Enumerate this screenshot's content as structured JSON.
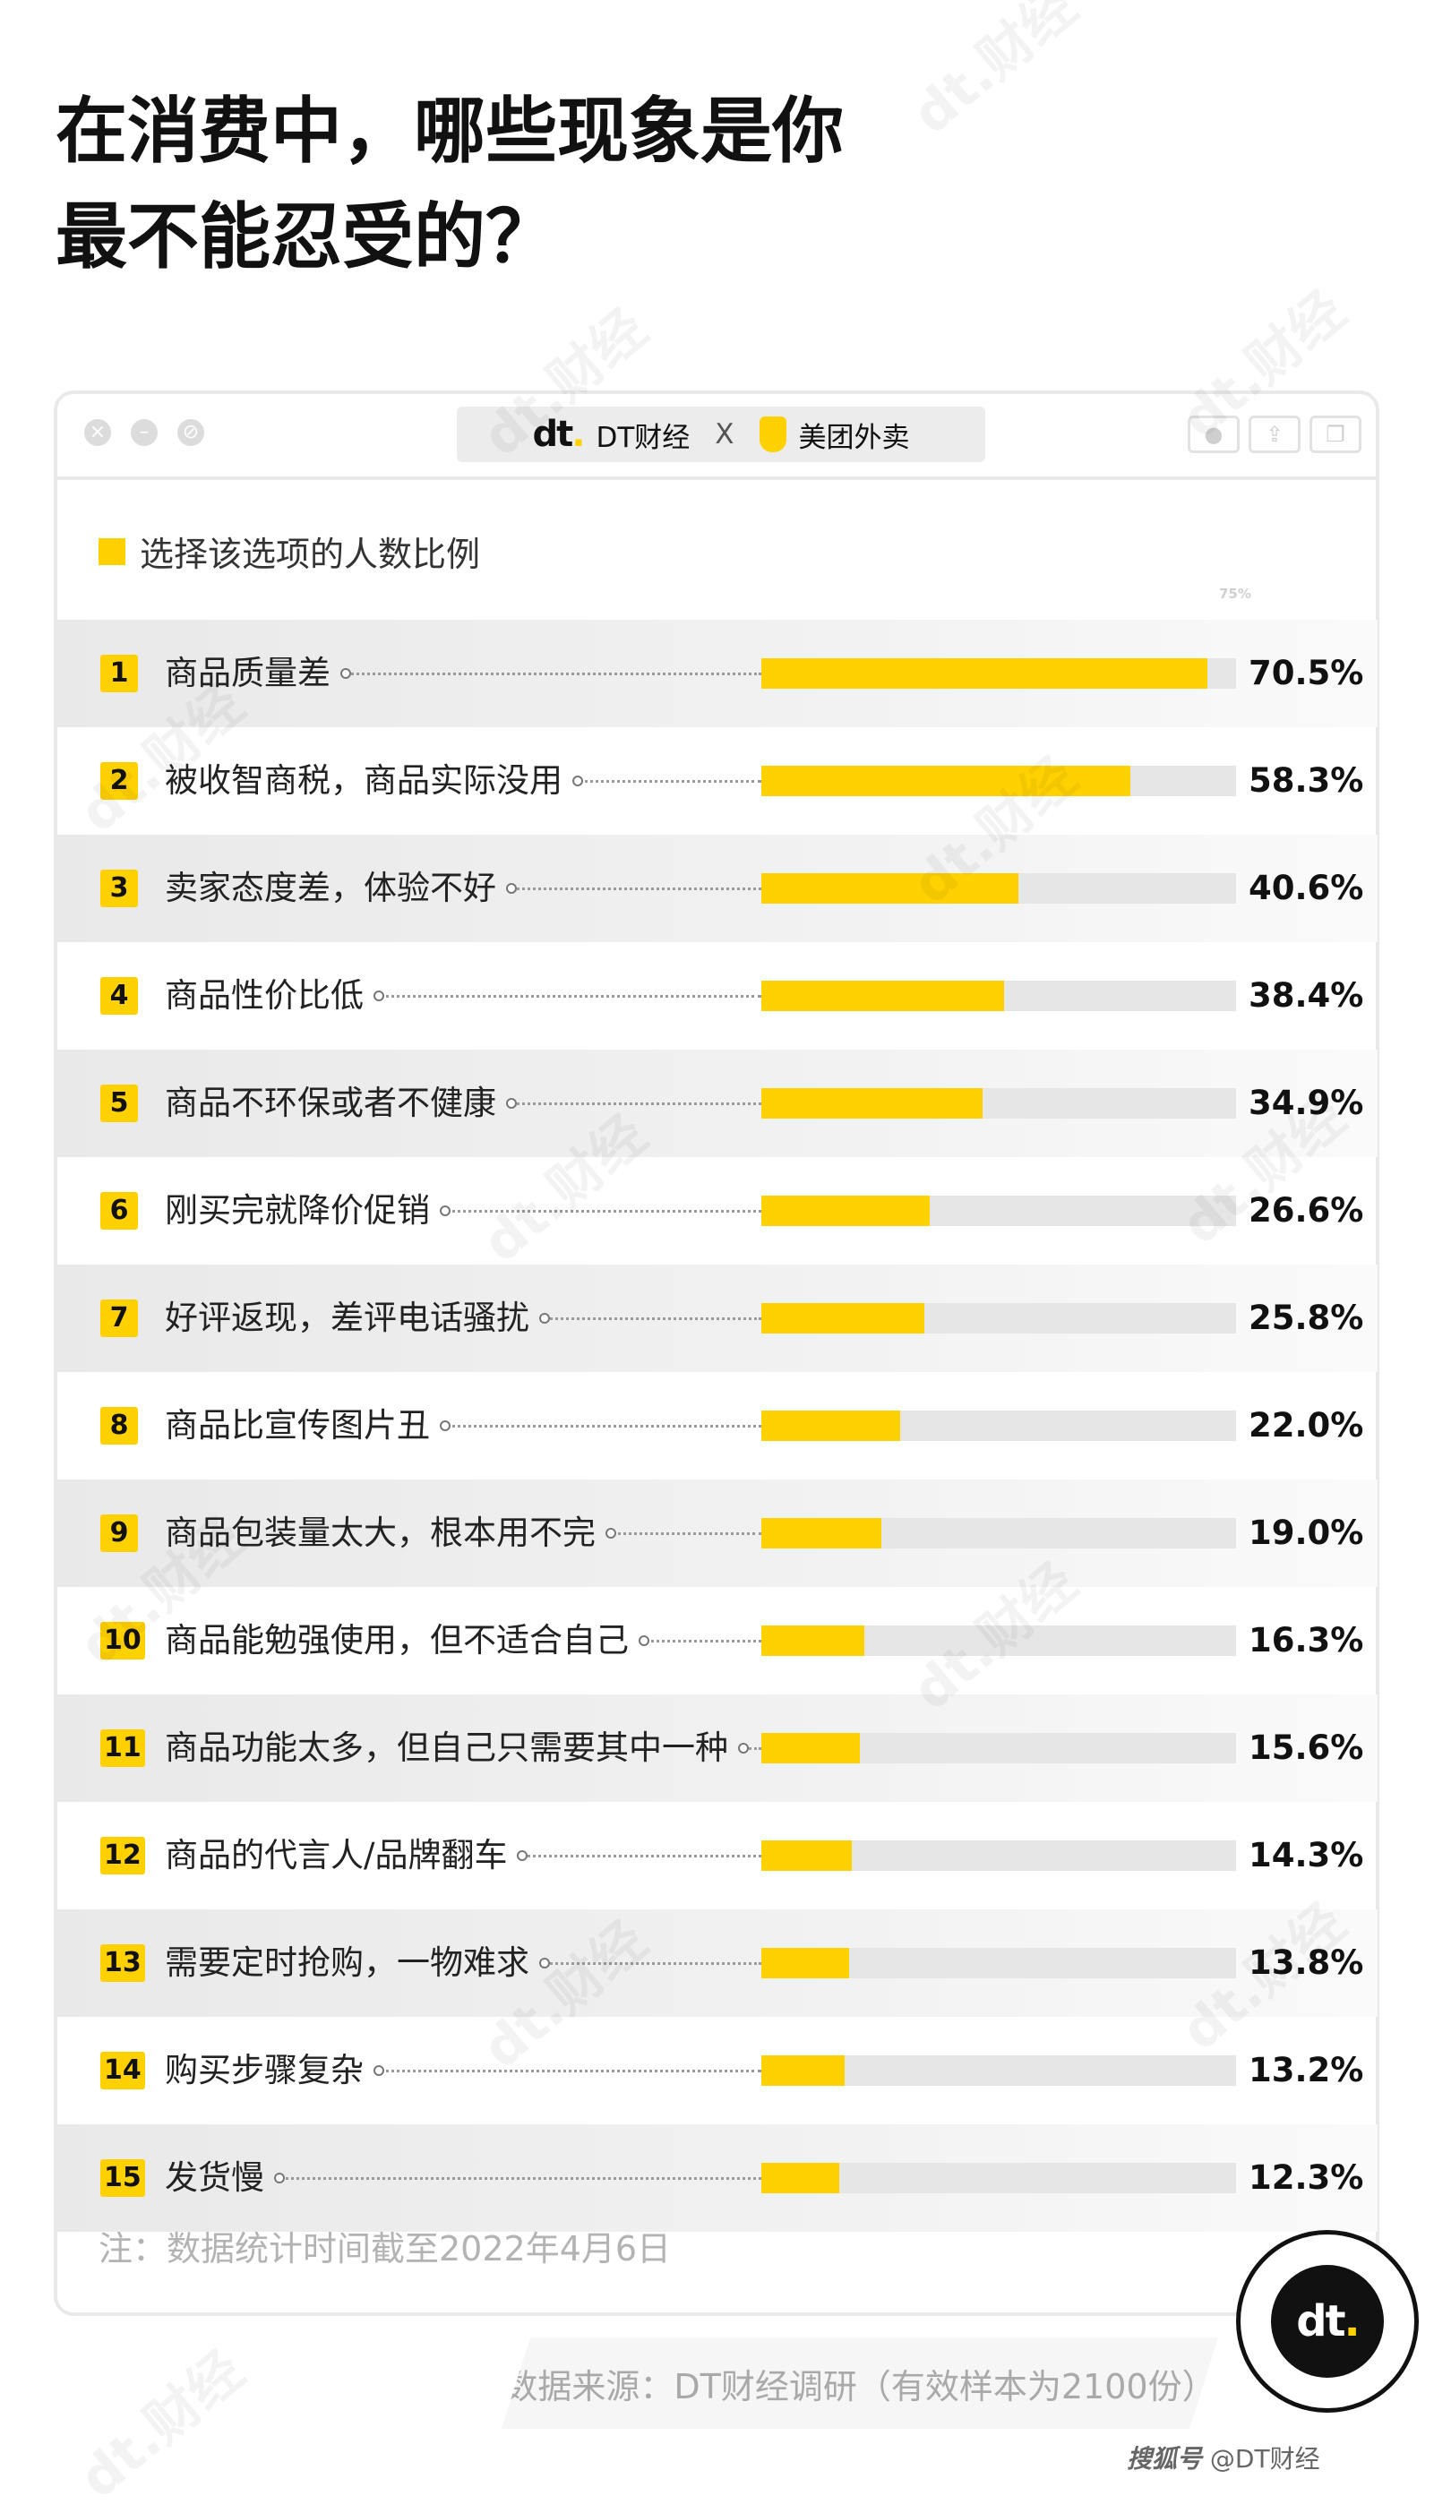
{
  "title_lines": [
    "在消费中，哪些现象是你",
    "最不能忍受的？"
  ],
  "header": {
    "brand_dt": "DT财经",
    "separator": "X",
    "brand_meituan": "美团外卖"
  },
  "legend": "选择该选项的人数比例",
  "chart_data": {
    "type": "bar",
    "orientation": "horizontal",
    "axis_max_label": "75%",
    "xlim": [
      0,
      75
    ],
    "categories": [
      "商品质量差",
      "被收智商税，商品实际没用",
      "卖家态度差，体验不好",
      "商品性价比低",
      "商品不环保或者不健康",
      "刚买完就降价促销",
      "好评返现，差评电话骚扰",
      "商品比宣传图片丑",
      "商品包装量太大，根本用不完",
      "商品能勉强使用，但不适合自己",
      "商品功能太多，但自己只需要其中一种",
      "商品的代言人/品牌翻车",
      "需要定时抢购，一物难求",
      "购买步骤复杂",
      "发货慢"
    ],
    "ranks": [
      "1",
      "2",
      "3",
      "4",
      "5",
      "6",
      "7",
      "8",
      "9",
      "10",
      "11",
      "12",
      "13",
      "14",
      "15"
    ],
    "values": [
      70.5,
      58.3,
      40.6,
      38.4,
      34.9,
      26.6,
      25.8,
      22.0,
      19.0,
      16.3,
      15.6,
      14.3,
      13.8,
      13.2,
      12.3
    ],
    "value_labels": [
      "70.5%",
      "58.3%",
      "40.6%",
      "38.4%",
      "34.9%",
      "26.6%",
      "25.8%",
      "22.0%",
      "19.0%",
      "16.3%",
      "15.6%",
      "14.3%",
      "13.8%",
      "13.2%",
      "12.3%"
    ],
    "bar_color": "#ffd100",
    "track_color": "#e6e6e6"
  },
  "note": "注：数据统计时间截至2022年4月6日",
  "source": "数据来源：DT财经调研（有效样本为2100份）",
  "footer": {
    "platform": "搜狐号",
    "account": "@DT财经"
  },
  "watermark": "dt.财经"
}
